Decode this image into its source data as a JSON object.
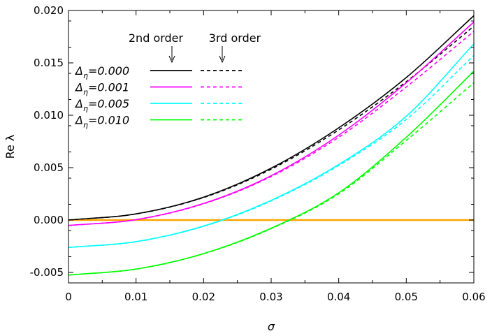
{
  "chart_data": {
    "type": "line",
    "xlabel": "σ",
    "ylabel": "Re λ",
    "xlim": [
      0,
      0.06
    ],
    "ylim": [
      -0.006,
      0.02
    ],
    "xticks": [
      "0",
      "0.01",
      "0.02",
      "0.03",
      "0.04",
      "0.05",
      "0.06"
    ],
    "yticks": [
      "-0.005",
      "0.000",
      "0.005",
      "0.010",
      "0.015",
      "0.020"
    ],
    "grid": false,
    "legend_placement": "top-left",
    "legend_headers": {
      "second": "2nd order",
      "third": "3rd order"
    },
    "zero_line": {
      "y": 0,
      "color": "#ffa500"
    },
    "series": [
      {
        "label_prefix": "Δ",
        "label_sub": "η",
        "label_value": "=0.000",
        "color": "#000000",
        "x": [
          0,
          0.01,
          0.02,
          0.03,
          0.04,
          0.05,
          0.06
        ],
        "second_order": [
          0.0,
          0.00059,
          0.00218,
          0.00495,
          0.0088,
          0.0136,
          0.0195
        ],
        "third_order": [
          0.0,
          0.00058,
          0.00215,
          0.00485,
          0.0086,
          0.0132,
          0.0185
        ]
      },
      {
        "label_prefix": "Δ",
        "label_sub": "η",
        "label_value": "=0.001",
        "color": "#ff00ff",
        "x": [
          0,
          0.01,
          0.02,
          0.03,
          0.04,
          0.05,
          0.06
        ],
        "second_order": [
          -0.00052,
          4e-05,
          0.00158,
          0.00423,
          0.0081,
          0.0131,
          0.0189
        ],
        "third_order": [
          -0.00052,
          3e-05,
          0.00155,
          0.00415,
          0.0079,
          0.0127,
          0.018
        ]
      },
      {
        "label_prefix": "Δ",
        "label_sub": "η",
        "label_value": "=0.005",
        "color": "#00ffff",
        "x": [
          0,
          0.01,
          0.02,
          0.03,
          0.04,
          0.05,
          0.06
        ],
        "second_order": [
          -0.00262,
          -0.00206,
          -0.00058,
          0.00188,
          0.0053,
          0.0099,
          0.0168
        ],
        "third_order": [
          -0.00262,
          -0.00207,
          -0.0006,
          0.00182,
          0.0052,
          0.0096,
          0.0157
        ]
      },
      {
        "label_prefix": "Δ",
        "label_sub": "η",
        "label_value": "=0.010",
        "color": "#00ff00",
        "x": [
          0,
          0.01,
          0.02,
          0.03,
          0.04,
          0.05,
          0.06
        ],
        "second_order": [
          -0.00525,
          -0.00468,
          -0.0032,
          -0.00078,
          0.0026,
          0.0079,
          0.0142
        ],
        "third_order": [
          -0.00525,
          -0.00469,
          -0.00322,
          -0.00083,
          0.0025,
          0.0076,
          0.0131
        ]
      }
    ]
  }
}
